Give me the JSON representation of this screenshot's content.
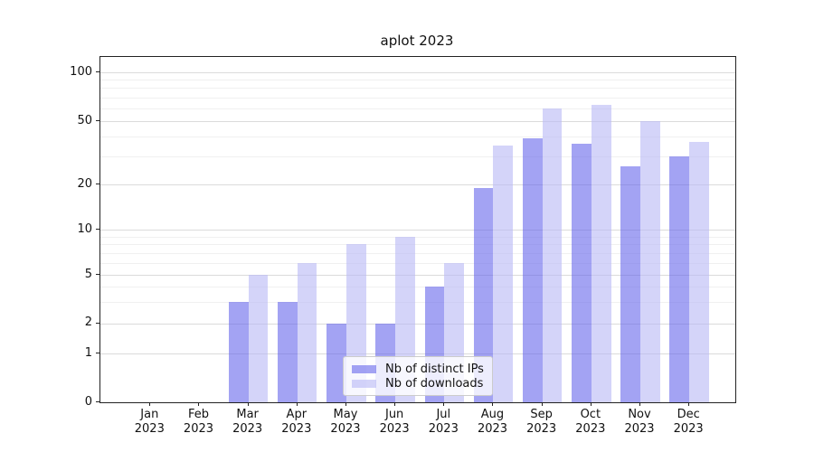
{
  "title": "aplot 2023",
  "chart_data": {
    "type": "bar",
    "title": "aplot 2023",
    "x_axis": {
      "months": [
        "Jan",
        "Feb",
        "Mar",
        "Apr",
        "May",
        "Jun",
        "Jul",
        "Aug",
        "Sep",
        "Oct",
        "Nov",
        "Dec"
      ],
      "year": "2023"
    },
    "y_axis": {
      "scale": "log-like (symlog/asinh), linear below 1, bottom at 0",
      "tick_labels": [
        "100",
        "50",
        "20",
        "10",
        "5",
        "2",
        "1",
        "0"
      ],
      "tick_values": [
        100,
        50,
        20,
        10,
        5,
        2,
        1,
        0
      ],
      "major_gridline_values": [
        1,
        2,
        5,
        10,
        20,
        50,
        100
      ],
      "minor_gridline_values": [
        3,
        4,
        6,
        7,
        8,
        9,
        30,
        40,
        60,
        70,
        80,
        90
      ],
      "ylim": [
        0,
        120
      ]
    },
    "series": [
      {
        "name": "Nb of distinct IPs",
        "color": "rgba(97,97,235,0.58)",
        "values": [
          0,
          0,
          3,
          3,
          2,
          2,
          4,
          19,
          39,
          36,
          26,
          30
        ]
      },
      {
        "name": "Nb of downloads",
        "color": "rgba(186,186,246,0.62)",
        "values": [
          0,
          0,
          5,
          6,
          8,
          9,
          6,
          35,
          60,
          63,
          50,
          37
        ]
      }
    ],
    "legend": {
      "position": "lower center",
      "entries": [
        "Nb of distinct IPs",
        "Nb of downloads"
      ]
    },
    "grid": true
  },
  "colors": {
    "background": "#ffffff",
    "spine": "#222222",
    "major_grid": "rgba(0,0,0,0.14)",
    "minor_grid": "rgba(0,0,0,0.06)",
    "legend_bg": "rgba(255,255,255,0.8)",
    "legend_border": "#cccccc",
    "bar_dark": "rgba(97,97,235,0.58)",
    "bar_light": "rgba(186,186,246,0.62)"
  }
}
